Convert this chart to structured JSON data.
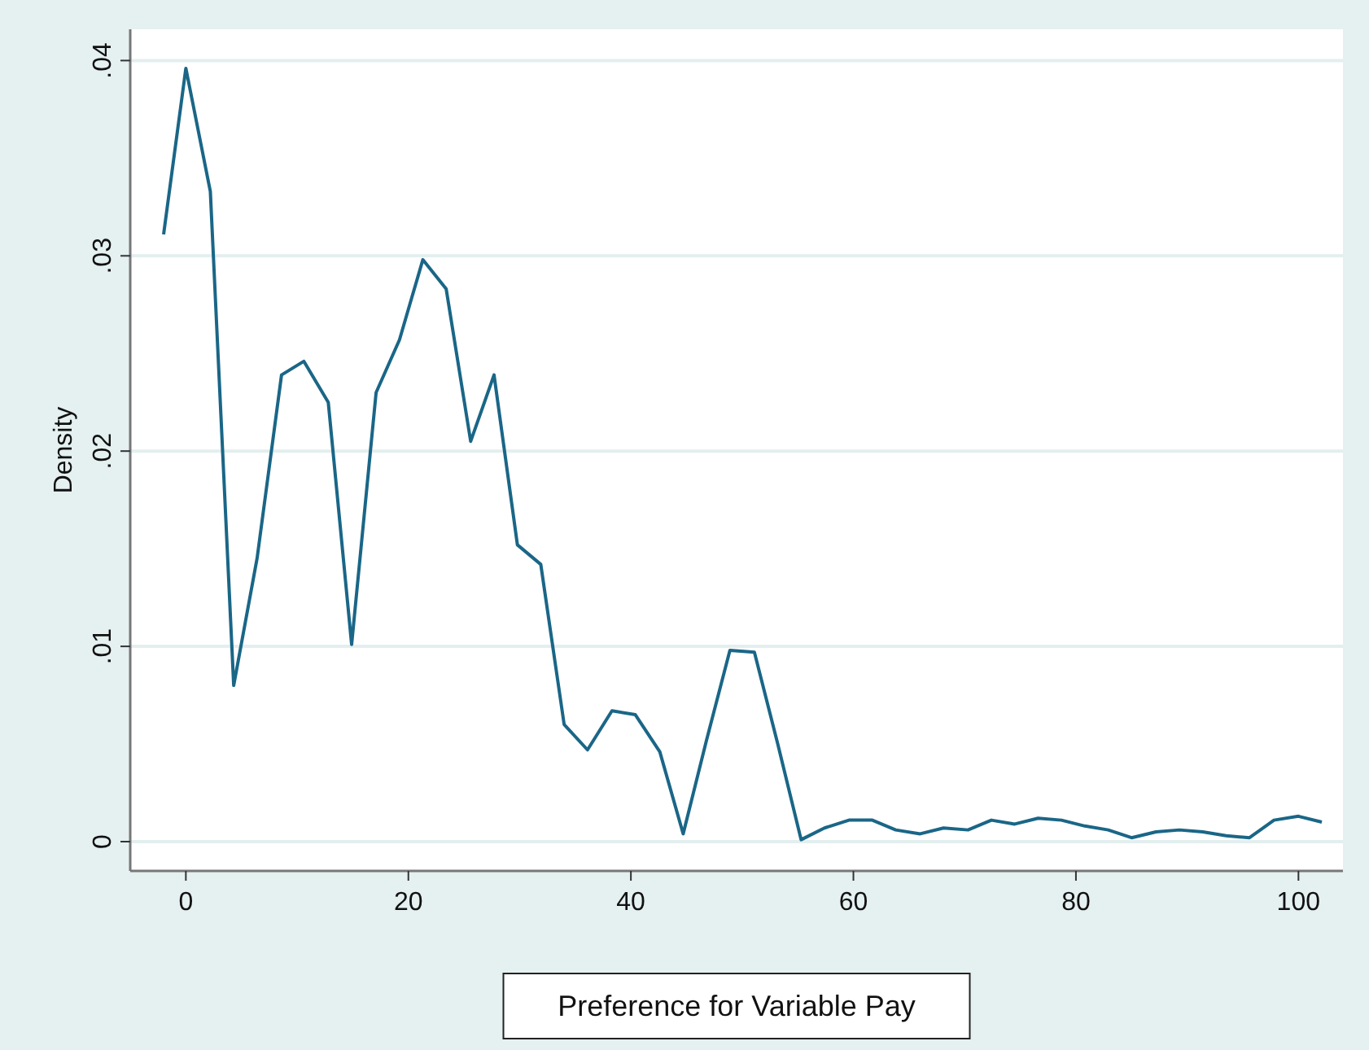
{
  "chart_data": {
    "type": "line",
    "xlabel": "Preference for Variable Pay",
    "ylabel": "Density",
    "x": [
      -2.0,
      0,
      2.2,
      4.3,
      6.4,
      8.6,
      10.6,
      12.8,
      14.9,
      17.1,
      19.2,
      21.3,
      23.4,
      25.6,
      27.7,
      29.8,
      31.9,
      34.0,
      36.1,
      38.3,
      40.4,
      42.6,
      44.7,
      46.8,
      48.9,
      51.1,
      53.2,
      55.3,
      57.4,
      59.6,
      61.7,
      63.8,
      66.0,
      68.1,
      70.3,
      72.4,
      74.5,
      76.6,
      78.7,
      80.8,
      82.9,
      85.0,
      87.2,
      89.3,
      91.4,
      93.5,
      95.6,
      97.8,
      100.0,
      102.1
    ],
    "series": [
      {
        "color": "#1a6687",
        "values": [
          0.0311,
          0.0396,
          0.0333,
          0.008,
          0.0145,
          0.0239,
          0.0246,
          0.0225,
          0.0101,
          0.023,
          0.0257,
          0.0298,
          0.0283,
          0.0205,
          0.0239,
          0.0152,
          0.0142,
          0.006,
          0.0047,
          0.0067,
          0.0065,
          0.0046,
          0.0004,
          0.0052,
          0.0098,
          0.0097,
          0.005,
          0.0001,
          0.0007,
          0.0011,
          0.0011,
          0.0006,
          0.0004,
          0.0007,
          0.0006,
          0.0011,
          0.0009,
          0.0012,
          0.0011,
          0.0008,
          0.0006,
          0.0002,
          0.0005,
          0.0006,
          0.0005,
          0.0003,
          0.0002,
          0.0011,
          0.0013,
          0.001
        ]
      }
    ],
    "xlim": [
      -5,
      104
    ],
    "xticks": [
      0,
      20,
      40,
      60,
      80,
      100
    ],
    "ylim": [
      -0.0015,
      0.0416
    ],
    "yticks": [
      {
        "value": 0,
        "label": "0"
      },
      {
        "value": 0.01,
        "label": ".01"
      },
      {
        "value": 0.02,
        "label": ".02"
      },
      {
        "value": 0.03,
        "label": ".03"
      },
      {
        "value": 0.04,
        "label": ".04"
      }
    ],
    "grid": "y",
    "marker": "none",
    "line_style": "solid"
  }
}
